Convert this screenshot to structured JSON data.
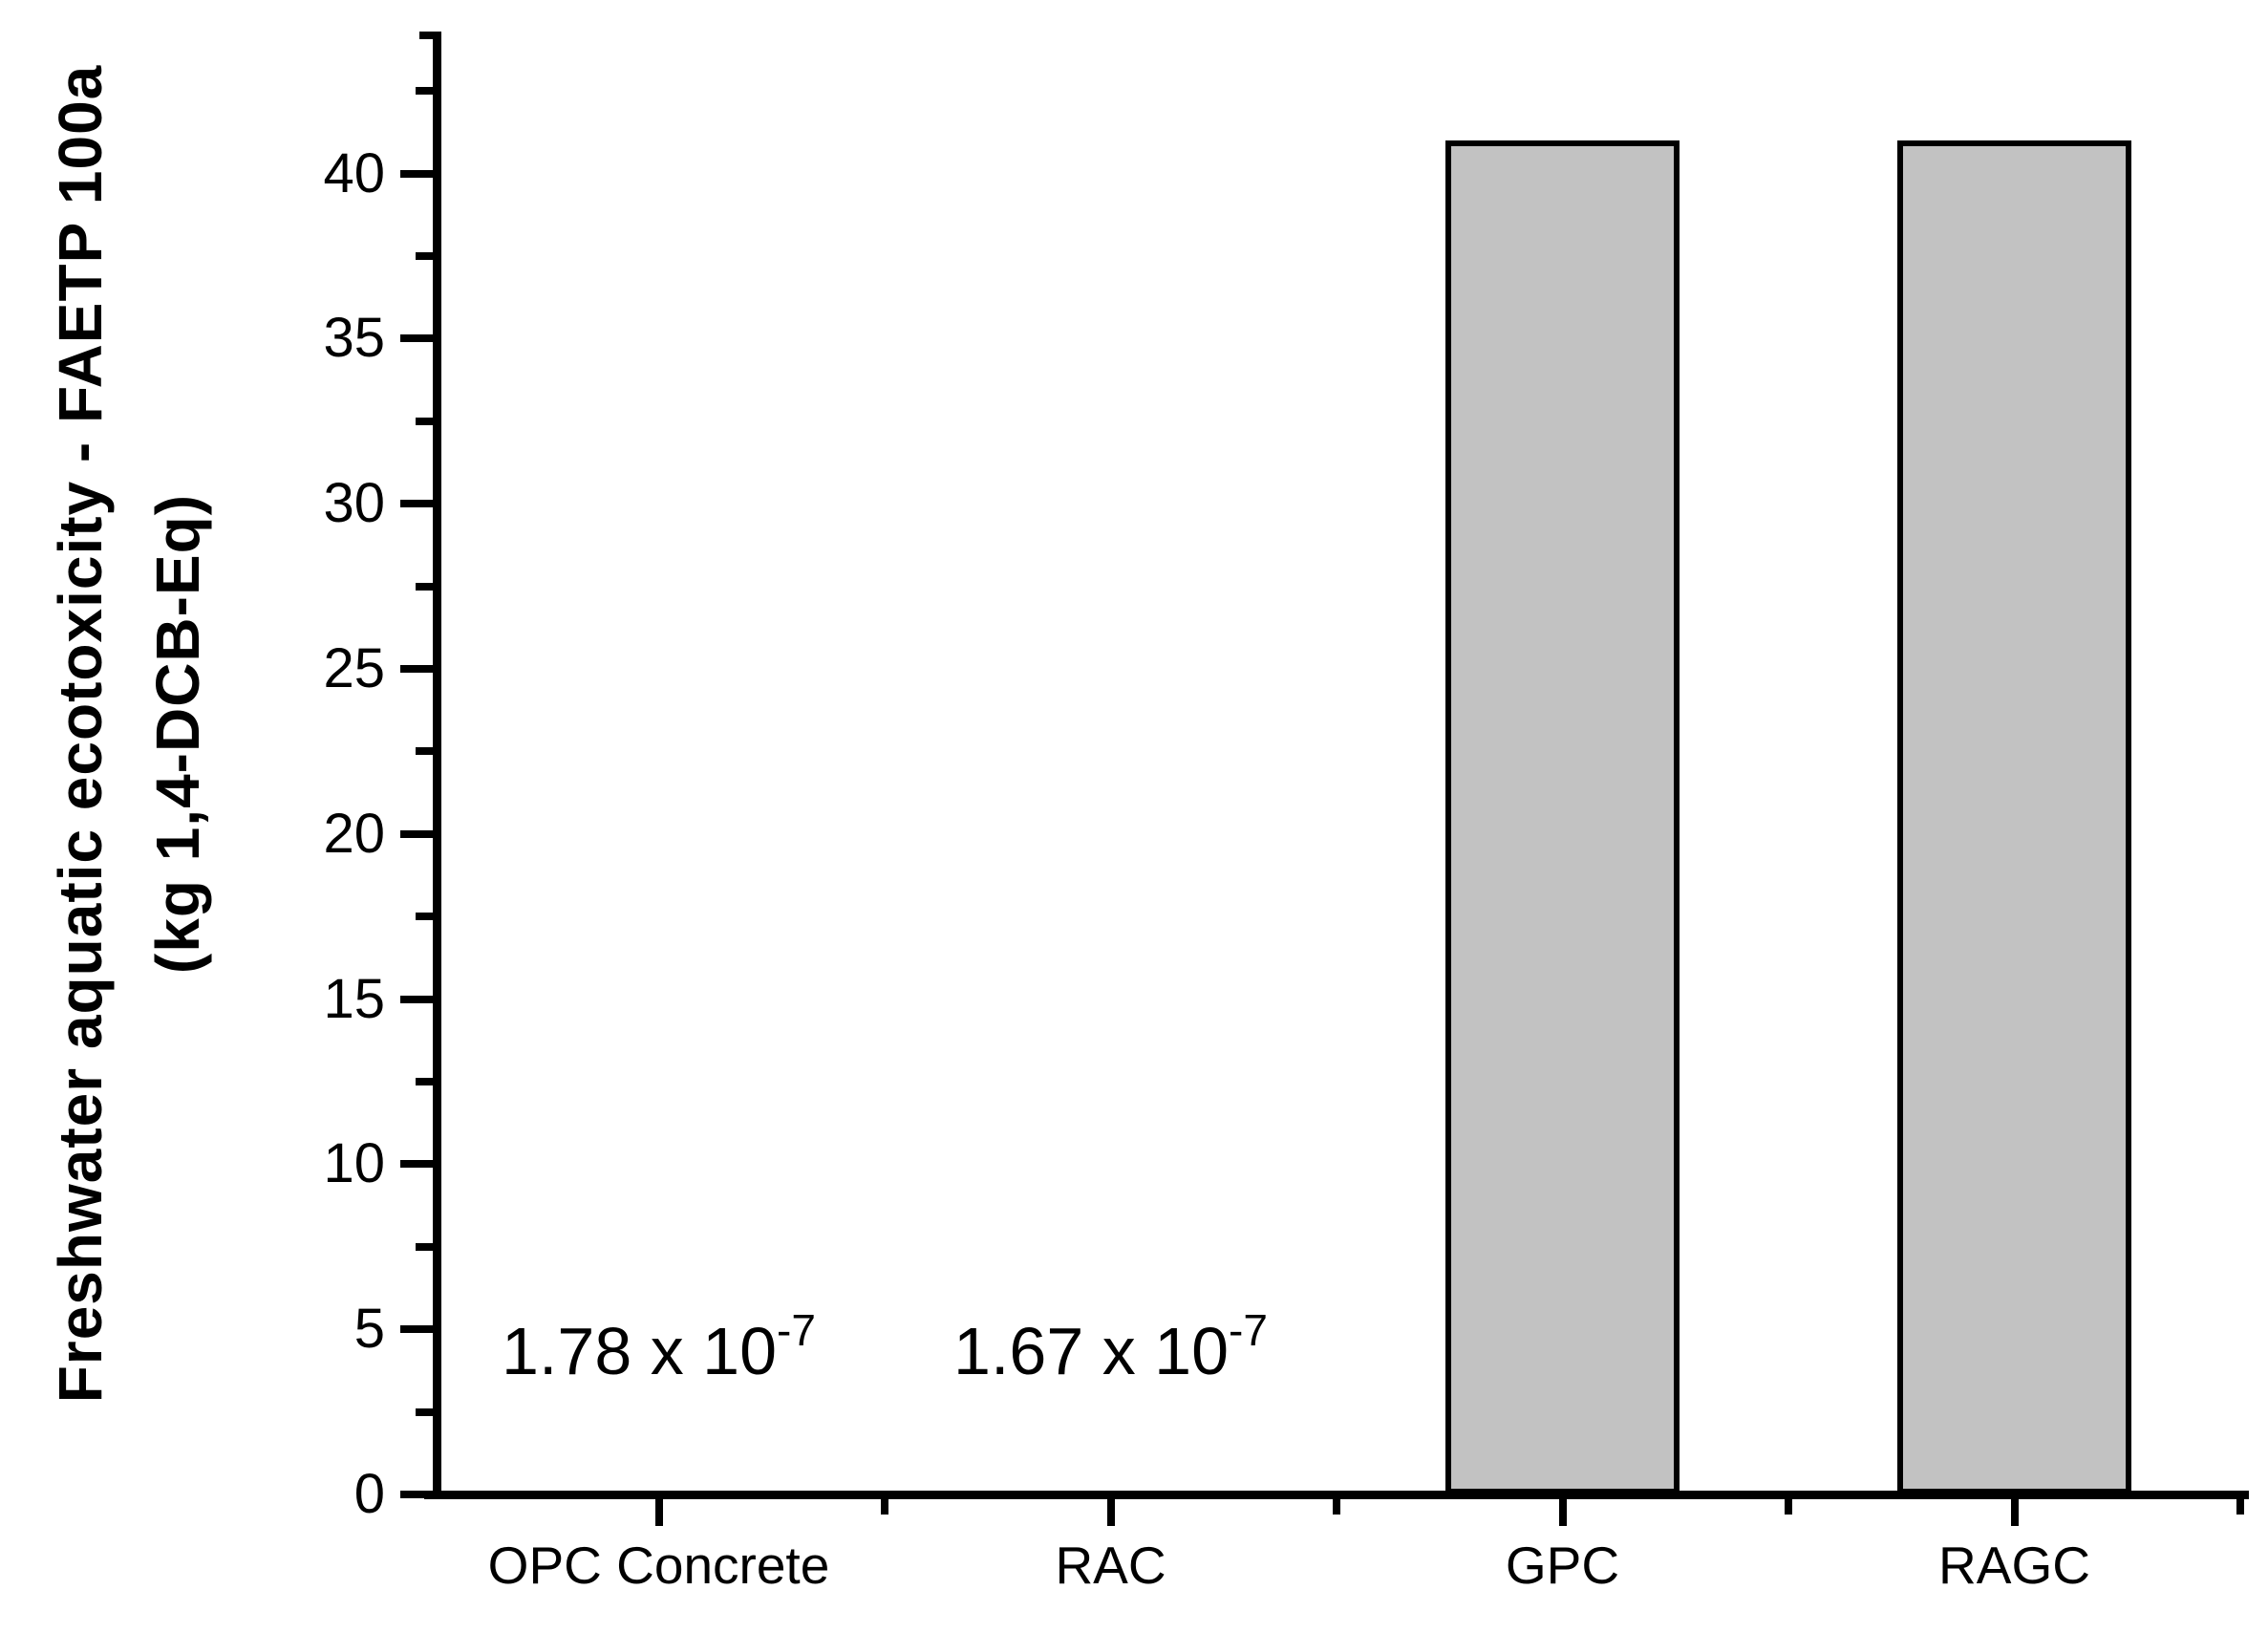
{
  "chart_data": {
    "type": "bar",
    "title": "",
    "categories": [
      "OPC Concrete",
      "RAC",
      "GPC",
      "RAGC"
    ],
    "values": [
      1.78e-07,
      1.67e-07,
      41,
      41
    ],
    "value_labels": [
      "1.78 x 10^-7",
      "1.67 x 10^-7",
      "",
      ""
    ],
    "annotations": [
      {
        "category_index": 0,
        "mantissa": "1.78 x 10",
        "exponent": "-7",
        "y_value": 4.3
      },
      {
        "category_index": 1,
        "mantissa": "1.67 x 10",
        "exponent": "-7",
        "y_value": 4.3
      }
    ],
    "ylabel_line1": "Freshwater aquatic ecotoxicity - FAETP 100a",
    "ylabel_line2": "(kg 1,4-DCB-Eq)",
    "xlabel": "",
    "ylim": [
      0,
      44.3
    ],
    "yticks": [
      0,
      5,
      10,
      15,
      20,
      25,
      30,
      35,
      40
    ],
    "ytick_major_step": 5,
    "ytick_minor_step": 2.5,
    "grid": false,
    "legend": null,
    "bar_color": "#c2c2c2",
    "bar_border_color": "#000000",
    "axis_color": "#000000",
    "text_color": "#000000",
    "background_color": "#ffffff"
  }
}
